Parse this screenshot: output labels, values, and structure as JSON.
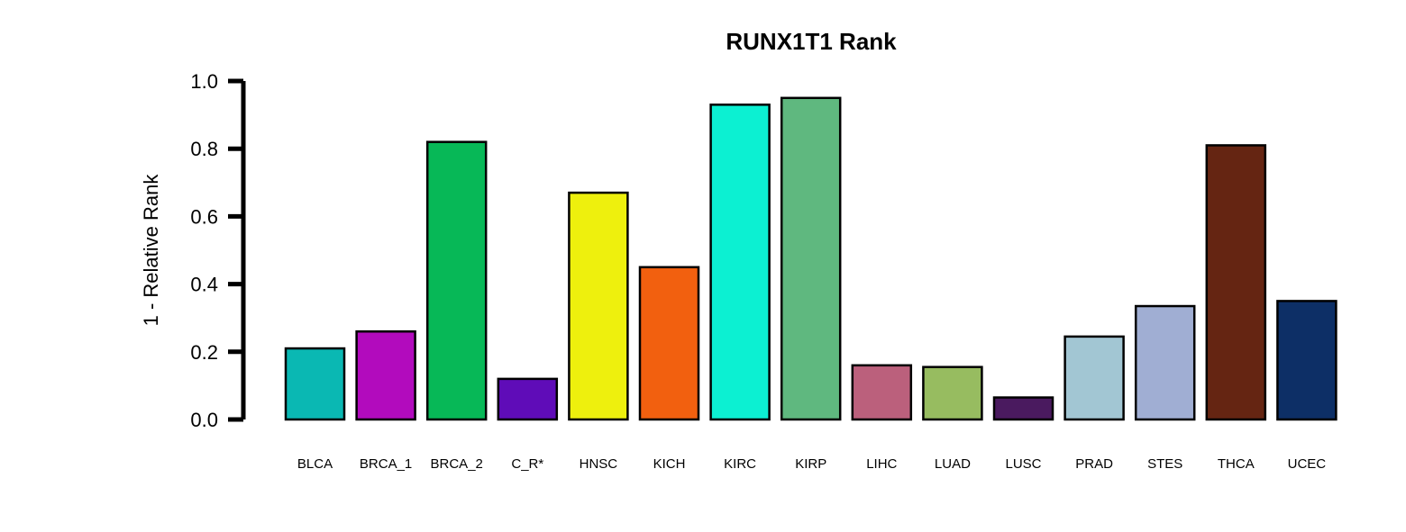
{
  "chart_data": {
    "type": "bar",
    "title": "RUNX1T1 Rank",
    "xlabel": "",
    "ylabel": "1 - Relative Rank",
    "ylim": [
      0,
      1
    ],
    "yticks": [
      "0.0",
      "0.2",
      "0.4",
      "0.6",
      "0.8",
      "1.0"
    ],
    "categories": [
      "BLCA",
      "BRCA_1",
      "BRCA_2",
      "C_R*",
      "HNSC",
      "KICH",
      "KIRC",
      "KIRP",
      "LIHC",
      "LUAD",
      "LUSC",
      "PRAD",
      "STES",
      "THCA",
      "UCEC"
    ],
    "values": [
      0.21,
      0.26,
      0.82,
      0.12,
      0.67,
      0.45,
      0.93,
      0.95,
      0.16,
      0.155,
      0.065,
      0.245,
      0.335,
      0.81,
      0.35
    ],
    "colors": [
      "#0ab8b3",
      "#b20bbd",
      "#07b857",
      "#5f0cb8",
      "#eef00d",
      "#f2600f",
      "#0cf0d2",
      "#5fb87f",
      "#bb607c",
      "#97bc60",
      "#4a1a5f",
      "#a2c6d3",
      "#a0aed3",
      "#652512",
      "#0d2f66"
    ],
    "grid": false,
    "legend": "none"
  }
}
